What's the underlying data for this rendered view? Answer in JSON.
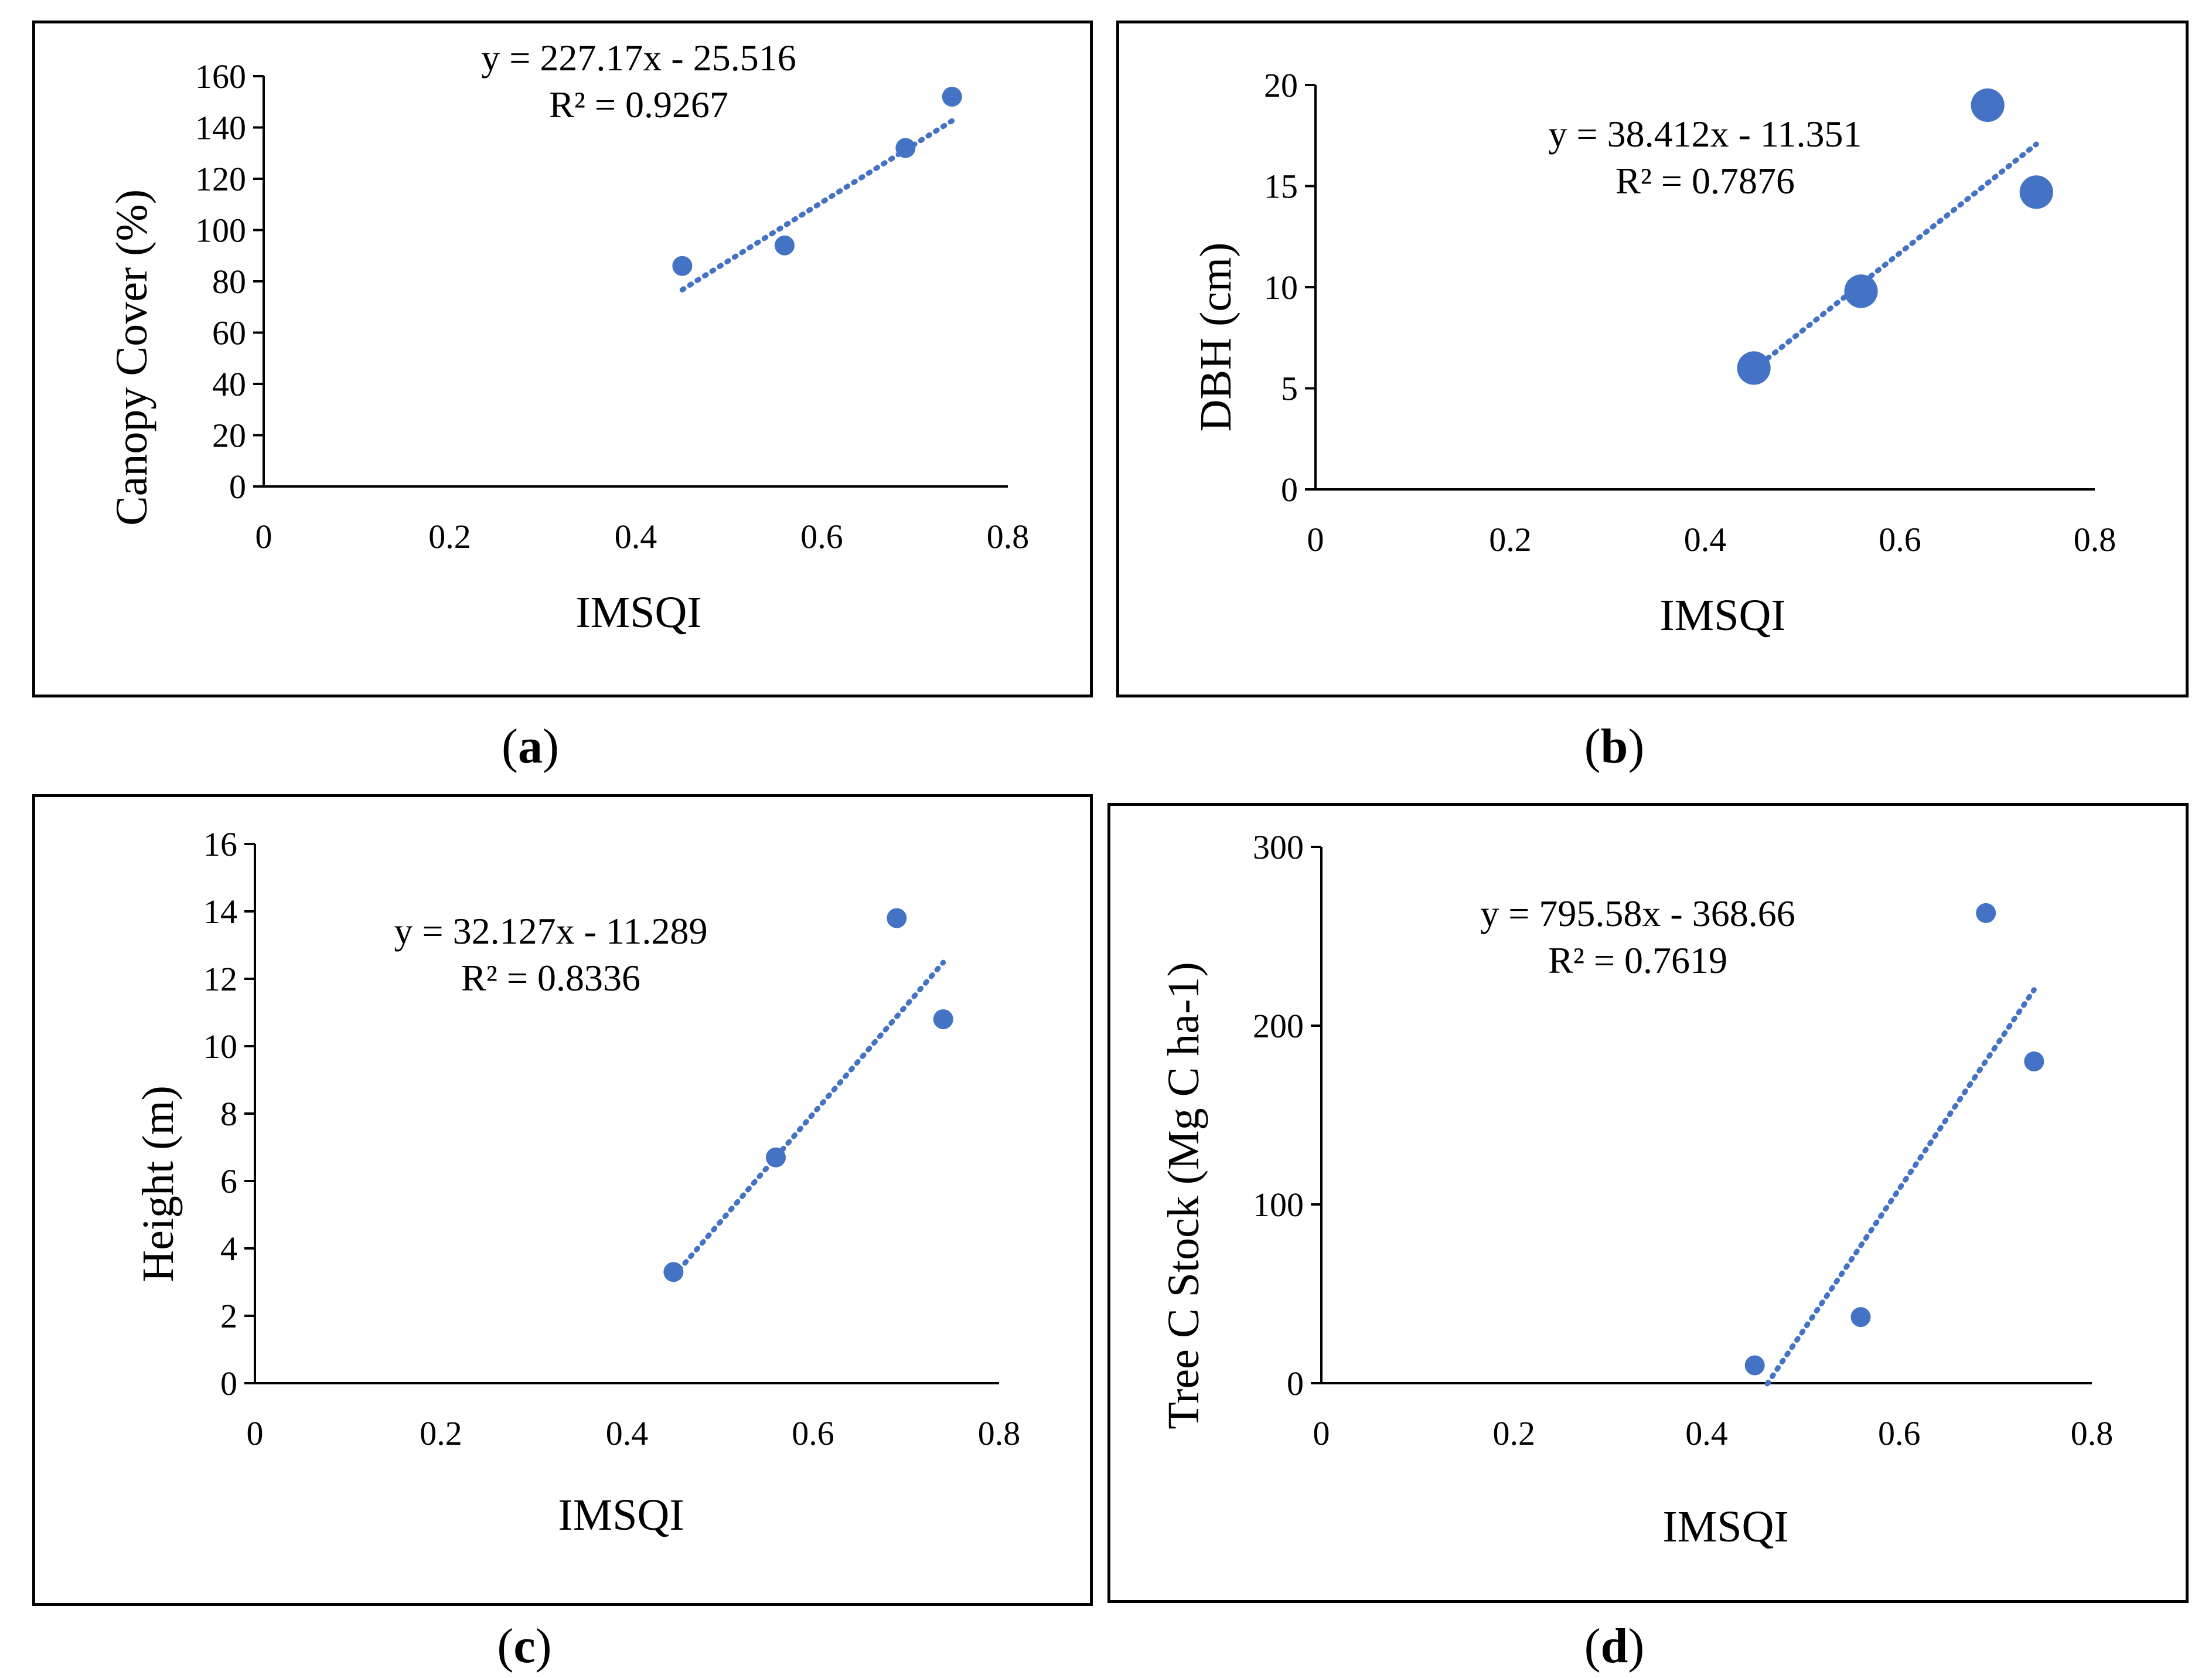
{
  "colors": {
    "points": "#4472C4",
    "trendline": "#4472C4",
    "axis": "#000000"
  },
  "chart_data": [
    {
      "type": "scatter",
      "panel_label": "a",
      "xlabel": "IMSQI",
      "ylabel": "Canopy Cover (%)",
      "xlim": [
        0,
        0.8
      ],
      "ylim": [
        0,
        160
      ],
      "xticks": [
        "0",
        "0.2",
        "0.4",
        "0.6",
        "0.8"
      ],
      "yticks": [
        "0",
        "20",
        "40",
        "60",
        "80",
        "100",
        "120",
        "140",
        "160"
      ],
      "x": [
        0.45,
        0.56,
        0.69,
        0.74
      ],
      "y": [
        86,
        94,
        132,
        152
      ],
      "trendline": {
        "slope": 227.17,
        "intercept": -25.516,
        "x_range": [
          0.45,
          0.74
        ]
      },
      "equation": "y = 227.17x - 25.516",
      "r2": "R² = 0.9267",
      "point_radius_units": 1
    },
    {
      "type": "scatter",
      "panel_label": "b",
      "xlabel": "IMSQI",
      "ylabel": "DBH (cm)",
      "xlim": [
        0,
        0.8
      ],
      "ylim": [
        0,
        20
      ],
      "xticks": [
        "0",
        "0.2",
        "0.4",
        "0.6",
        "0.8"
      ],
      "yticks": [
        "0",
        "5",
        "10",
        "15",
        "20"
      ],
      "x": [
        0.45,
        0.56,
        0.69,
        0.74
      ],
      "y": [
        6.0,
        9.8,
        19.0,
        14.7
      ],
      "trendline": {
        "slope": 38.412,
        "intercept": -11.351,
        "x_range": [
          0.45,
          0.74
        ]
      },
      "equation": "y = 38.412x - 11.351",
      "r2": "R² = 0.7876",
      "point_radius_units": 1.3
    },
    {
      "type": "scatter",
      "panel_label": "c",
      "xlabel": "IMSQI",
      "ylabel": "Height (m)",
      "xlim": [
        0,
        0.8
      ],
      "ylim": [
        0,
        16
      ],
      "xticks": [
        "0",
        "0.2",
        "0.4",
        "0.6",
        "0.8"
      ],
      "yticks": [
        "0",
        "2",
        "4",
        "6",
        "8",
        "10",
        "12",
        "14",
        "16"
      ],
      "x": [
        0.45,
        0.56,
        0.69,
        0.74
      ],
      "y": [
        3.3,
        6.7,
        13.8,
        10.8
      ],
      "trendline": {
        "slope": 32.127,
        "intercept": -11.289,
        "x_range": [
          0.45,
          0.74
        ]
      },
      "equation": "y = 32.127x - 11.289",
      "r2": "R² = 0.8336",
      "point_radius_units": 1
    },
    {
      "type": "scatter",
      "panel_label": "d",
      "xlabel": "IMSQI",
      "ylabel": "Tree C Stock (Mg C ha-1)",
      "xlim": [
        0,
        0.8
      ],
      "ylim": [
        0,
        300
      ],
      "xticks": [
        "0",
        "0.2",
        "0.4",
        "0.6",
        "0.8"
      ],
      "yticks": [
        "0",
        "100",
        "200",
        "300"
      ],
      "x": [
        0.45,
        0.56,
        0.69,
        0.74
      ],
      "y": [
        10,
        37,
        263,
        180
      ],
      "trendline": {
        "slope": 795.58,
        "intercept": -368.66,
        "x_range": [
          0.463,
          0.74
        ]
      },
      "equation": "y = 795.58x - 368.66",
      "r2": "R² = 0.7619",
      "point_radius_units": 1
    }
  ]
}
